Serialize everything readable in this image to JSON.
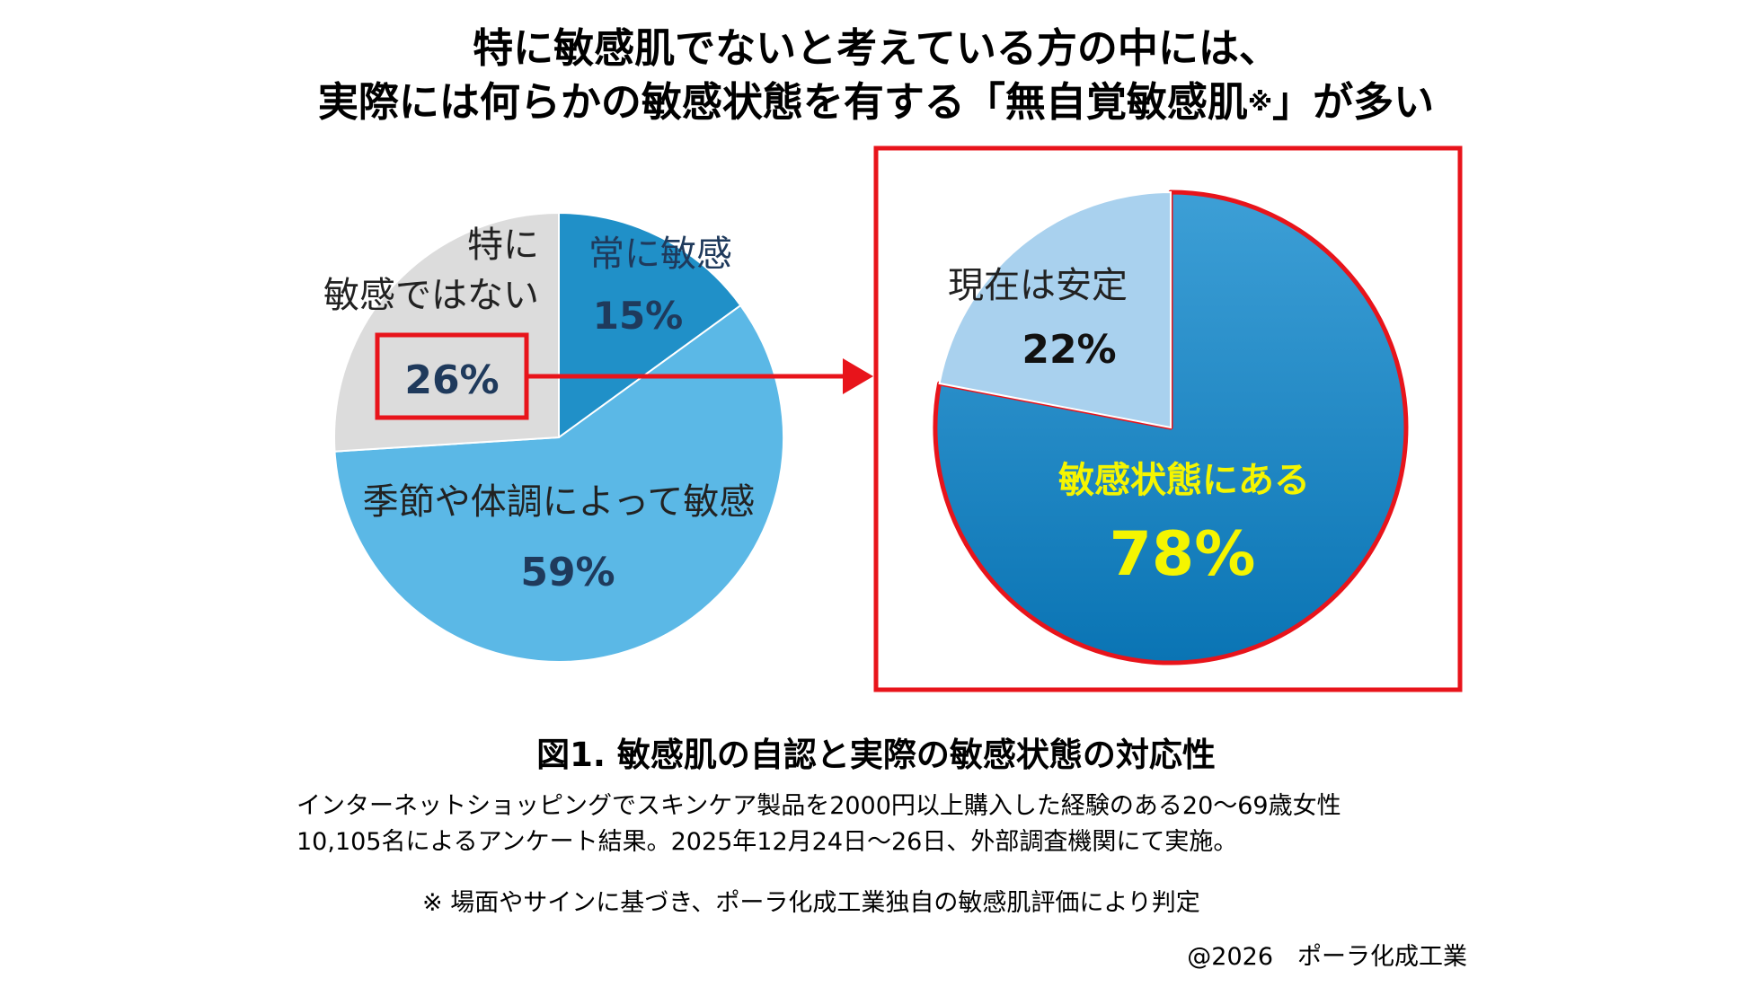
{
  "title": {
    "line1": "特に敏感肌でないと考えている方の中には、",
    "line2_main": "実際には何らかの敏感状態を有する「無自覚敏感肌",
    "line2_mark": "※",
    "line2_end": "」が多い"
  },
  "caption": "図1. 敏感肌の自認と実際の敏感状態の対応性",
  "notes": {
    "line1": "インターネットショッピングでスキンケア製品を2000円以上購入した経験のある20～69歳女性",
    "line2": "10,105名によるアンケート結果。2025年12月24日～26日、外部調査機関にて実施。",
    "line3": "※ 場面やサインに基づき、ポーラ化成工業独自の敏感肌評価により判定"
  },
  "copyright": "@2026　ポーラ化成工業",
  "chart_data": [
    {
      "type": "pie",
      "unit": "%",
      "slices": [
        {
          "label": "常に敏感",
          "value": 15,
          "value_label": "15%",
          "color": "#2090c8"
        },
        {
          "label": "季節や体調によって敏感",
          "value": 59,
          "value_label": "59%",
          "color": "#5bb8e6"
        },
        {
          "label_line1": "特に",
          "label_line2": "敏感ではない",
          "value": 26,
          "value_label": "26%",
          "color": "#dcdcdc",
          "highlighted": true
        }
      ]
    },
    {
      "type": "pie",
      "unit": "%",
      "slices": [
        {
          "label": "敏感状態にある",
          "value": 78,
          "value_label": "78%",
          "color": "#1a8ac8",
          "text_color": "#f5f500"
        },
        {
          "label": "現在は安定",
          "value": 22,
          "value_label": "22%",
          "color": "#a9d1ee"
        }
      ]
    }
  ],
  "colors": {
    "highlight": "#e8141b",
    "dark_text": "#1f3a5c"
  }
}
